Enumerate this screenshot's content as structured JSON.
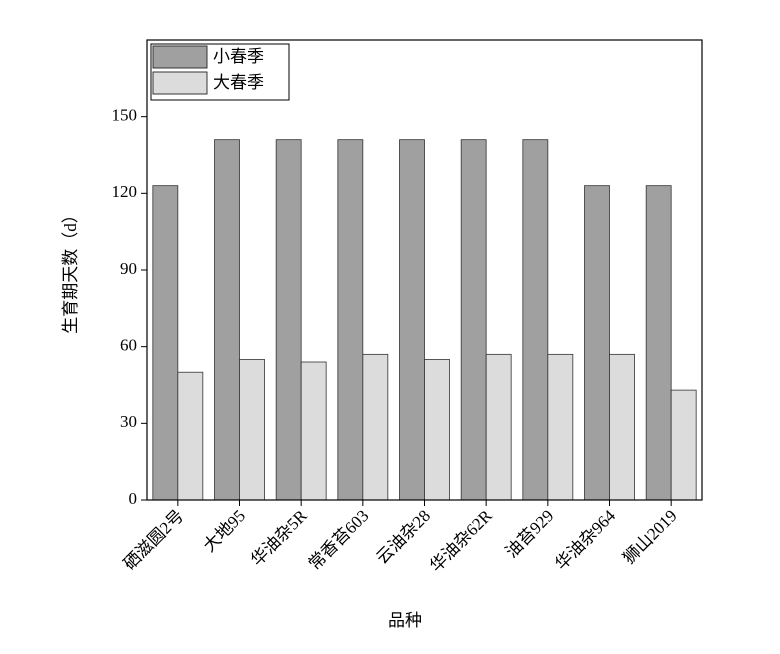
{
  "chart_data": {
    "type": "bar",
    "x_label": "品种",
    "y_label": "生育期天数（d）",
    "categories": [
      "硒滋圆2号",
      "大地95",
      "华油杂5R",
      "常香苔603",
      "云油杂28",
      "华油杂62R",
      "油苔929",
      "华油杂964",
      "狮山2019"
    ],
    "series": [
      {
        "name": "小春季",
        "color": "#a0a0a0",
        "values": [
          123,
          141,
          141,
          141,
          141,
          141,
          141,
          123,
          123
        ]
      },
      {
        "name": "大春季",
        "color": "#dcdcdc",
        "values": [
          50,
          55,
          54,
          57,
          55,
          57,
          57,
          57,
          43
        ]
      }
    ],
    "ylim": [
      0,
      180
    ],
    "yticks": [
      0,
      30,
      60,
      90,
      120,
      150
    ],
    "legend": "upper left"
  }
}
